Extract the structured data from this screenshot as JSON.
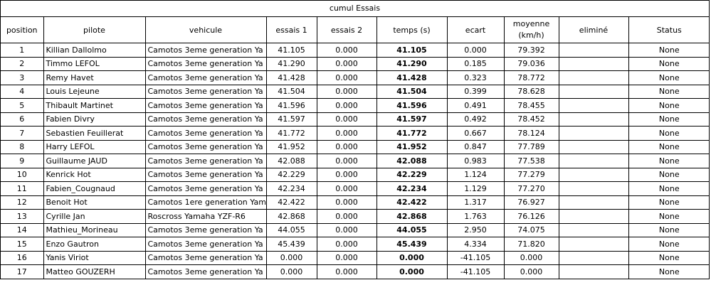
{
  "sheet": {
    "title": "cumul Essais",
    "headers": {
      "position": "position",
      "pilote": "pilote",
      "vehicule": "vehicule",
      "essais1": "essais 1",
      "essais2": "essais 2",
      "temps": "temps (s)",
      "ecart": "ecart",
      "moyenne_line1": "moyenne",
      "moyenne_line2": "(km/h)",
      "elimine": "eliminé",
      "status": "Status"
    },
    "rows": [
      {
        "position": "1",
        "pilote": "Killian Dallolmo",
        "vehicule": "Camotos 3eme generation Ya",
        "essais1": "41.105",
        "essais2": "0.000",
        "temps": "41.105",
        "ecart": "0.000",
        "moyenne": "79.392",
        "elimine": "",
        "status": "None"
      },
      {
        "position": "2",
        "pilote": "Timmo LEFOL",
        "vehicule": "Camotos 3eme generation Ya",
        "essais1": "41.290",
        "essais2": "0.000",
        "temps": "41.290",
        "ecart": "0.185",
        "moyenne": "79.036",
        "elimine": "",
        "status": "None"
      },
      {
        "position": "3",
        "pilote": "Remy Havet",
        "vehicule": "Camotos 3eme generation Ya",
        "essais1": "41.428",
        "essais2": "0.000",
        "temps": "41.428",
        "ecart": "0.323",
        "moyenne": "78.772",
        "elimine": "",
        "status": "None"
      },
      {
        "position": "4",
        "pilote": "Louis Lejeune",
        "vehicule": "Camotos 3eme generation Ya",
        "essais1": "41.504",
        "essais2": "0.000",
        "temps": "41.504",
        "ecart": "0.399",
        "moyenne": "78.628",
        "elimine": "",
        "status": "None"
      },
      {
        "position": "5",
        "pilote": "Thibault Martinet",
        "vehicule": "Camotos 3eme generation Ya",
        "essais1": "41.596",
        "essais2": "0.000",
        "temps": "41.596",
        "ecart": "0.491",
        "moyenne": "78.455",
        "elimine": "",
        "status": "None"
      },
      {
        "position": "6",
        "pilote": "Fabien Divry",
        "vehicule": "Camotos 3eme generation Ya",
        "essais1": "41.597",
        "essais2": "0.000",
        "temps": "41.597",
        "ecart": "0.492",
        "moyenne": "78.452",
        "elimine": "",
        "status": "None"
      },
      {
        "position": "7",
        "pilote": "Sebastien Feuillerat",
        "vehicule": "Camotos 3eme generation Ya",
        "essais1": "41.772",
        "essais2": "0.000",
        "temps": "41.772",
        "ecart": "0.667",
        "moyenne": "78.124",
        "elimine": "",
        "status": "None"
      },
      {
        "position": "8",
        "pilote": "Harry LEFOL",
        "vehicule": "Camotos 3eme generation Ya",
        "essais1": "41.952",
        "essais2": "0.000",
        "temps": "41.952",
        "ecart": "0.847",
        "moyenne": "77.789",
        "elimine": "",
        "status": "None"
      },
      {
        "position": "9",
        "pilote": "Guillaume JAUD",
        "vehicule": "Camotos 3eme generation Ya",
        "essais1": "42.088",
        "essais2": "0.000",
        "temps": "42.088",
        "ecart": "0.983",
        "moyenne": "77.538",
        "elimine": "",
        "status": "None"
      },
      {
        "position": "10",
        "pilote": "Kenrick Hot",
        "vehicule": "Camotos 3eme generation Ya",
        "essais1": "42.229",
        "essais2": "0.000",
        "temps": "42.229",
        "ecart": "1.124",
        "moyenne": "77.279",
        "elimine": "",
        "status": "None"
      },
      {
        "position": "11",
        "pilote": "Fabien_Cougnaud",
        "vehicule": "Camotos 3eme generation Ya",
        "essais1": "42.234",
        "essais2": "0.000",
        "temps": "42.234",
        "ecart": "1.129",
        "moyenne": "77.270",
        "elimine": "",
        "status": "None"
      },
      {
        "position": "12",
        "pilote": "Benoit Hot",
        "vehicule": "Camotos 1ere generation Yam",
        "essais1": "42.422",
        "essais2": "0.000",
        "temps": "42.422",
        "ecart": "1.317",
        "moyenne": "76.927",
        "elimine": "",
        "status": "None"
      },
      {
        "position": "13",
        "pilote": "Cyrille Jan",
        "vehicule": "Roscross Yamaha YZF-R6",
        "essais1": "42.868",
        "essais2": "0.000",
        "temps": "42.868",
        "ecart": "1.763",
        "moyenne": "76.126",
        "elimine": "",
        "status": "None"
      },
      {
        "position": "14",
        "pilote": "Mathieu_Morineau",
        "vehicule": "Camotos 3eme generation Ya",
        "essais1": "44.055",
        "essais2": "0.000",
        "temps": "44.055",
        "ecart": "2.950",
        "moyenne": "74.075",
        "elimine": "",
        "status": "None"
      },
      {
        "position": "15",
        "pilote": "Enzo Gautron",
        "vehicule": "Camotos 3eme generation Ya",
        "essais1": "45.439",
        "essais2": "0.000",
        "temps": "45.439",
        "ecart": "4.334",
        "moyenne": "71.820",
        "elimine": "",
        "status": "None"
      },
      {
        "position": "16",
        "pilote": "Yanis Viriot",
        "vehicule": "Camotos 3eme generation Ya",
        "essais1": "0.000",
        "essais2": "0.000",
        "temps": "0.000",
        "ecart": "-41.105",
        "moyenne": "0.000",
        "elimine": "",
        "status": "None"
      },
      {
        "position": "17",
        "pilote": "Matteo GOUZERH",
        "vehicule": "Camotos 3eme generation Ya",
        "essais1": "0.000",
        "essais2": "0.000",
        "temps": "0.000",
        "ecart": "-41.105",
        "moyenne": "0.000",
        "elimine": "",
        "status": "None"
      }
    ]
  }
}
